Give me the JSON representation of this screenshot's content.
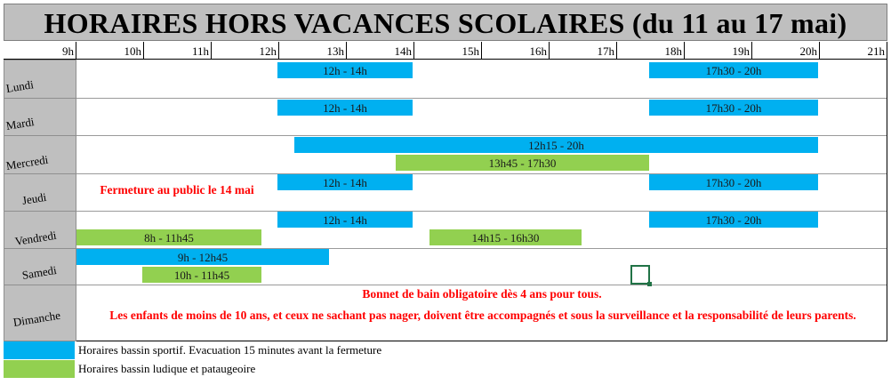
{
  "title": "HORAIRES HORS VACANCES SCOLAIRES (du 11 au 17 mai)",
  "hours": [
    "9h",
    "10h",
    "11h",
    "12h",
    "13h",
    "14h",
    "15h",
    "16h",
    "17h",
    "18h",
    "19h",
    "20h",
    "21h"
  ],
  "days": {
    "lundi": "Lundi",
    "mardi": "Mardi",
    "mercredi": "Mercredi",
    "jeudi": "Jeudi",
    "vendredi": "Vendredi",
    "samedi": "Samedi",
    "dimanche": "Dimanche"
  },
  "slots": {
    "lundi_1": "12h - 14h",
    "lundi_2": "17h30 - 20h",
    "mardi_1": "12h - 14h",
    "mardi_2": "17h30 - 20h",
    "mercredi_1": "12h15 - 20h",
    "mercredi_2": "13h45 - 17h30",
    "jeudi_1": "12h - 14h",
    "jeudi_2": "17h30 - 20h",
    "vendredi_1": "12h - 14h",
    "vendredi_2": "17h30 - 20h",
    "vendredi_3": "8h - 11h45",
    "vendredi_4": "14h15 - 16h30",
    "samedi_1": "9h - 12h45",
    "samedi_2": "10h - 11h45"
  },
  "notices": {
    "jeudi": "Fermeture au public le 14 mai",
    "dimanche_line1": "Bonnet de bain obligatoire dès 4 ans pour tous.",
    "dimanche_line2": "Les enfants de moins de 10 ans, et ceux ne sachant pas nager, doivent être accompagnés et sous la surveillance et la responsabilité de leurs parents."
  },
  "legend": {
    "blue": "Horaires bassin sportif. Evacuation 15 minutes avant la fermeture",
    "green": "Horaires bassin ludique et pataugeoire"
  },
  "colors": {
    "blue": "#00b0f0",
    "green": "#92d050",
    "header_gray": "#bfbfbf",
    "notice_red": "#ff0000"
  }
}
